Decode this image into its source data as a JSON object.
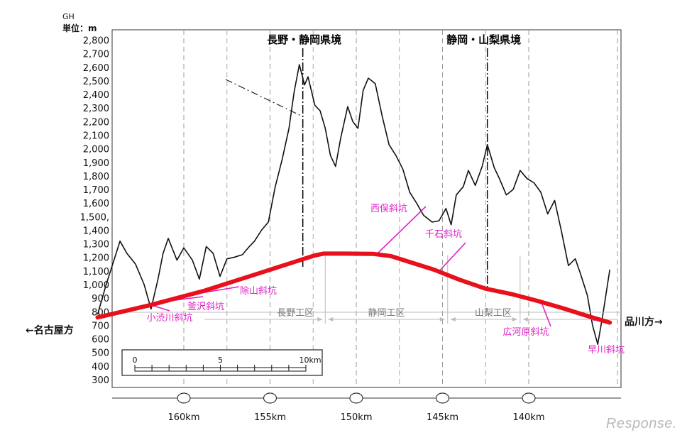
{
  "chart_data": {
    "type": "line",
    "y_unit_label": [
      "GH",
      "単位：m"
    ],
    "y_ticks": [
      300,
      400,
      500,
      600,
      700,
      800,
      900,
      1000,
      1100,
      1200,
      1300,
      1400,
      1500,
      1600,
      1700,
      1800,
      1900,
      2000,
      2100,
      2200,
      2300,
      2400,
      2500,
      2600,
      2700,
      2800
    ],
    "y_tick_labels": [
      "300",
      "400",
      "500",
      "600",
      "700",
      "800",
      "900",
      "1,000",
      "1,100",
      "1,200",
      "1,300",
      "1,400",
      "1,500,",
      "1,600",
      "1,700",
      "1,800",
      "1,900",
      "2,000",
      "2,100",
      "2,200",
      "2,300",
      "2,400",
      "2,500",
      "2,600",
      "2,700",
      "2,800"
    ],
    "ylim": [
      300,
      2900
    ],
    "x_axis": "km (reversed)",
    "xlim": [
      165,
      135.3
    ],
    "x_ticks": [
      160,
      155,
      150,
      145,
      140
    ],
    "x_tick_labels": [
      "160km",
      "155km",
      "150km",
      "145km",
      "140km"
    ],
    "series": [
      {
        "key": "ground",
        "color": "#111111",
        "points": [
          [
            165,
            780
          ],
          [
            164.5,
            1000
          ],
          [
            164,
            1200
          ],
          [
            163.7,
            1320
          ],
          [
            163.3,
            1230
          ],
          [
            162.8,
            1150
          ],
          [
            162.3,
            1000
          ],
          [
            161.9,
            820
          ],
          [
            161.5,
            1040
          ],
          [
            161.2,
            1230
          ],
          [
            160.9,
            1340
          ],
          [
            160.4,
            1180
          ],
          [
            160.0,
            1270
          ],
          [
            159.5,
            1180
          ],
          [
            159.1,
            1040
          ],
          [
            158.7,
            1280
          ],
          [
            158.3,
            1230
          ],
          [
            157.9,
            1060
          ],
          [
            157.5,
            1190
          ],
          [
            157.1,
            1200
          ],
          [
            156.6,
            1220
          ],
          [
            156.2,
            1280
          ],
          [
            155.9,
            1320
          ],
          [
            155.5,
            1400
          ],
          [
            155.1,
            1460
          ],
          [
            154.7,
            1720
          ],
          [
            154.3,
            1920
          ],
          [
            153.9,
            2150
          ],
          [
            153.6,
            2420
          ],
          [
            153.3,
            2620
          ],
          [
            153.0,
            2470
          ],
          [
            152.8,
            2530
          ],
          [
            152.4,
            2320
          ],
          [
            152.1,
            2280
          ],
          [
            151.8,
            2150
          ],
          [
            151.5,
            1950
          ],
          [
            151.2,
            1870
          ],
          [
            150.9,
            2080
          ],
          [
            150.5,
            2310
          ],
          [
            150.2,
            2200
          ],
          [
            149.9,
            2150
          ],
          [
            149.6,
            2430
          ],
          [
            149.3,
            2520
          ],
          [
            148.9,
            2480
          ],
          [
            148.5,
            2240
          ],
          [
            148.1,
            2030
          ],
          [
            147.7,
            1950
          ],
          [
            147.3,
            1850
          ],
          [
            146.9,
            1680
          ],
          [
            146.5,
            1600
          ],
          [
            146.1,
            1510
          ],
          [
            145.6,
            1460
          ],
          [
            145.2,
            1470
          ],
          [
            144.8,
            1560
          ],
          [
            144.5,
            1440
          ],
          [
            144.2,
            1660
          ],
          [
            143.8,
            1720
          ],
          [
            143.5,
            1840
          ],
          [
            143.1,
            1730
          ],
          [
            142.7,
            1870
          ],
          [
            142.4,
            2030
          ],
          [
            142.0,
            1860
          ],
          [
            141.7,
            1780
          ],
          [
            141.3,
            1660
          ],
          [
            140.9,
            1700
          ],
          [
            140.5,
            1840
          ],
          [
            140.1,
            1780
          ],
          [
            139.7,
            1750
          ],
          [
            139.3,
            1680
          ],
          [
            138.9,
            1520
          ],
          [
            138.5,
            1620
          ],
          [
            138.1,
            1390
          ],
          [
            137.7,
            1140
          ],
          [
            137.3,
            1190
          ],
          [
            137.0,
            1080
          ],
          [
            136.6,
            920
          ],
          [
            136.3,
            700
          ],
          [
            136.0,
            560
          ],
          [
            135.7,
            780
          ],
          [
            135.3,
            1110
          ]
        ]
      },
      {
        "key": "tunnel",
        "color": "#e8101a",
        "points": [
          [
            165,
            758
          ],
          [
            161.9,
            850
          ],
          [
            158.8,
            955
          ],
          [
            157.2,
            1020
          ],
          [
            155.6,
            1085
          ],
          [
            154.0,
            1150
          ],
          [
            152.4,
            1215
          ],
          [
            151.9,
            1228
          ],
          [
            150.6,
            1228
          ],
          [
            149.0,
            1226
          ],
          [
            148.0,
            1210
          ],
          [
            147.0,
            1170
          ],
          [
            145.5,
            1110
          ],
          [
            144.0,
            1035
          ],
          [
            142.5,
            970
          ],
          [
            141.0,
            930
          ],
          [
            139.5,
            880
          ],
          [
            138.0,
            825
          ],
          [
            136.5,
            765
          ],
          [
            135.3,
            720
          ]
        ]
      }
    ],
    "boundaries": [
      {
        "label": "長野・静岡県境",
        "km": 153.1,
        "from_m": 1130
      },
      {
        "label": "静岡・山梨県境",
        "km": 142.4,
        "from_m": 960
      }
    ],
    "sections": [
      {
        "label": "長野工区",
        "from_km": 157.0,
        "to_km": 151.8
      },
      {
        "label": "静岡工区",
        "to_km": 144.7
      },
      {
        "label": "山梨工区",
        "to_km": 140.5
      }
    ],
    "shafts": [
      {
        "label": "小渋川斜坑",
        "km": 161.9,
        "m": 850
      },
      {
        "label": "釜沢斜坑",
        "km": 160.5,
        "m": 885
      },
      {
        "label": "除山斜坑",
        "km": 159.4,
        "m": 930
      },
      {
        "label": "西俣斜坑",
        "km": 148.8,
        "m": 1226
      },
      {
        "label": "千石斜坑",
        "km": 145.2,
        "m": 1098
      },
      {
        "label": "広河原斜坑",
        "km": 139.3,
        "m": 880
      },
      {
        "label": "早川斜坑",
        "km": 136.3,
        "m": 746
      }
    ],
    "direction_left": "←名古屋方",
    "direction_right": "品川方→",
    "scale_bar": {
      "ticks": [
        "0",
        "5",
        "10km"
      ]
    },
    "colors": {
      "shaft_label": "#e020c8",
      "section_label": "#777777"
    }
  },
  "watermark": "Response."
}
